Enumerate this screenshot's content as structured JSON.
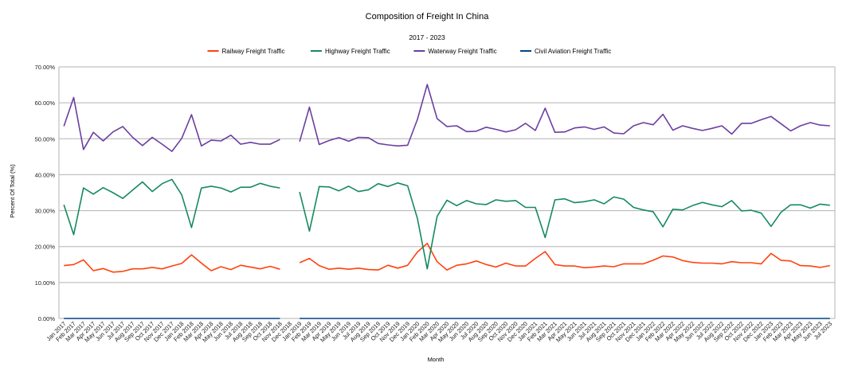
{
  "chart_data": {
    "type": "line",
    "title": "Composition of Freight In China",
    "subtitle": "2017 - 2023",
    "xlabel": "Month",
    "ylabel": "Percent Of Total (%)",
    "ylim": [
      0,
      70
    ],
    "yticks": [
      "0.00%",
      "10.00%",
      "20.00%",
      "30.00%",
      "40.00%",
      "50.00%",
      "60.00%",
      "70.00%"
    ],
    "grid": true,
    "legend_position": "top",
    "x": [
      "Jan 2017",
      "Feb 2017",
      "Mar 2017",
      "Apr 2017",
      "May 2017",
      "Jun 2017",
      "Jul 2017",
      "Aug 2017",
      "Sep 2017",
      "Oct 2017",
      "Nov 2017",
      "Dec 2017",
      "Jan 2018",
      "Feb 2018",
      "Mar 2018",
      "Apr 2018",
      "May 2018",
      "Jun 2018",
      "Jul 2018",
      "Aug 2018",
      "Sep 2018",
      "Oct 2018",
      "Nov 2018",
      "Dec 2018",
      "Jan 2019",
      "Feb 2019",
      "Mar 2019",
      "Apr 2019",
      "May 2019",
      "Jun 2019",
      "Jul 2019",
      "Aug 2019",
      "Sep 2019",
      "Oct 2019",
      "Nov 2019",
      "Dec 2019",
      "Jan 2020",
      "Feb 2020",
      "Mar 2020",
      "Apr 2020",
      "May 2020",
      "Jun 2020",
      "Jul 2020",
      "Aug 2020",
      "Sep 2020",
      "Oct 2020",
      "Nov 2020",
      "Dec 2020",
      "Jan 2021",
      "Feb 2021",
      "Mar 2021",
      "Apr 2021",
      "May 2021",
      "Jun 2021",
      "Jul 2021",
      "Aug 2021",
      "Sep 2021",
      "Oct 2021",
      "Nov 2021",
      "Dec 2021",
      "Jan 2022",
      "Feb 2022",
      "Mar 2022",
      "Apr 2022",
      "May 2022",
      "Jun 2022",
      "Jul 2022",
      "Aug 2022",
      "Sep 2022",
      "Oct 2022",
      "Nov 2022",
      "Dec 2022",
      "Jan 2023",
      "Feb 2023",
      "Mar 2023",
      "Apr 2023",
      "May 2023",
      "Jun 2023",
      "Jul 2023"
    ],
    "series": [
      {
        "name": "Railway Freight Traffic",
        "color": "#ff420e",
        "values": [
          14.7,
          15.0,
          16.3,
          13.3,
          13.9,
          12.9,
          13.1,
          13.8,
          13.8,
          14.2,
          13.8,
          14.6,
          15.3,
          17.7,
          15.4,
          13.3,
          14.4,
          13.6,
          14.8,
          14.3,
          13.8,
          14.5,
          13.7,
          null,
          15.5,
          16.7,
          14.7,
          13.7,
          14.0,
          13.7,
          14.0,
          13.6,
          13.5,
          14.8,
          14.0,
          14.8,
          18.5,
          20.9,
          15.8,
          13.5,
          14.8,
          15.2,
          16.0,
          15.0,
          14.3,
          15.4,
          14.6,
          14.6,
          16.7,
          18.6,
          15.0,
          14.6,
          14.6,
          14.1,
          14.3,
          14.6,
          14.4,
          15.2,
          15.2,
          15.2,
          16.2,
          17.4,
          17.1,
          16.1,
          15.6,
          15.4,
          15.4,
          15.2,
          15.8,
          15.5,
          15.5,
          15.2,
          18.1,
          16.2,
          16.0,
          14.7,
          14.6,
          14.2,
          14.7
        ]
      },
      {
        "name": "Highway Freight Traffic",
        "color": "#168a5e",
        "values": [
          31.6,
          23.3,
          36.3,
          34.6,
          36.4,
          35.0,
          33.4,
          35.7,
          38.0,
          35.3,
          37.5,
          38.7,
          34.4,
          25.3,
          36.3,
          36.8,
          36.3,
          35.2,
          36.5,
          36.5,
          37.6,
          36.8,
          36.3,
          null,
          35.2,
          24.3,
          36.7,
          36.6,
          35.5,
          36.8,
          35.3,
          35.8,
          37.5,
          36.7,
          37.7,
          36.9,
          27.8,
          13.8,
          28.4,
          32.9,
          31.4,
          32.8,
          31.9,
          31.7,
          33.0,
          32.6,
          32.8,
          30.9,
          30.9,
          22.5,
          33.0,
          33.3,
          32.2,
          32.5,
          33.0,
          31.9,
          33.8,
          33.2,
          30.9,
          30.2,
          29.7,
          25.5,
          30.4,
          30.2,
          31.4,
          32.3,
          31.6,
          31.1,
          32.8,
          29.9,
          30.1,
          29.3,
          25.6,
          29.5,
          31.6,
          31.6,
          30.7,
          31.8,
          31.5
        ]
      },
      {
        "name": "Waterway Freight Traffic",
        "color": "#6b3fa0",
        "values": [
          53.5,
          61.5,
          47.0,
          51.8,
          49.4,
          51.9,
          53.4,
          50.4,
          48.1,
          50.4,
          48.5,
          46.5,
          50.1,
          56.7,
          48.0,
          49.6,
          49.4,
          51.0,
          48.5,
          49.0,
          48.5,
          48.5,
          49.8,
          null,
          49.2,
          58.8,
          48.4,
          49.5,
          50.3,
          49.3,
          50.4,
          50.3,
          48.7,
          48.3,
          48.0,
          48.2,
          55.4,
          65.1,
          55.6,
          53.4,
          53.6,
          52.0,
          52.1,
          53.2,
          52.6,
          51.9,
          52.5,
          54.3,
          52.3,
          58.5,
          51.8,
          51.9,
          53.0,
          53.3,
          52.6,
          53.3,
          51.6,
          51.4,
          53.6,
          54.5,
          53.9,
          56.8,
          52.4,
          53.6,
          52.9,
          52.3,
          52.9,
          53.6,
          51.3,
          54.3,
          54.3,
          55.3,
          56.2,
          54.2,
          52.2,
          53.6,
          54.5,
          53.8,
          53.6
        ]
      },
      {
        "name": "Civil Aviation Freight Traffic",
        "color": "#004586",
        "values": [
          0.01,
          0.01,
          0.01,
          0.01,
          0.01,
          0.01,
          0.01,
          0.01,
          0.01,
          0.01,
          0.01,
          0.01,
          0.01,
          0.01,
          0.01,
          0.01,
          0.01,
          0.01,
          0.01,
          0.01,
          0.01,
          0.01,
          0.01,
          null,
          0.01,
          0.01,
          0.01,
          0.01,
          0.01,
          0.01,
          0.01,
          0.01,
          0.01,
          0.01,
          0.01,
          0.01,
          0.01,
          0.01,
          0.01,
          0.01,
          0.01,
          0.01,
          0.01,
          0.01,
          0.01,
          0.01,
          0.01,
          0.01,
          0.01,
          0.01,
          0.01,
          0.01,
          0.01,
          0.01,
          0.01,
          0.01,
          0.01,
          0.01,
          0.01,
          0.01,
          0.01,
          0.01,
          0.01,
          0.01,
          0.01,
          0.01,
          0.01,
          0.01,
          0.01,
          0.01,
          0.01,
          0.01,
          0.01,
          0.01,
          0.01,
          0.01,
          0.01,
          0.01,
          0.01
        ]
      }
    ]
  }
}
